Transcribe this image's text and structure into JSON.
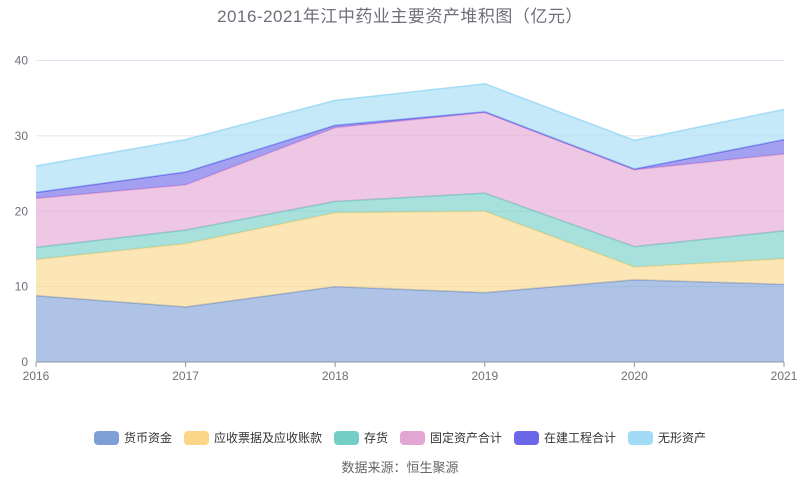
{
  "source_note": "数据来源：恒生聚源",
  "chart_data": {
    "type": "area",
    "stacked": true,
    "title": "2016-2021年江中药业主要资产堆积图（亿元）",
    "categories": [
      "2016",
      "2017",
      "2018",
      "2019",
      "2020",
      "2021"
    ],
    "ylim": [
      0,
      40
    ],
    "y_ticks": [
      0,
      10,
      20,
      30,
      40
    ],
    "grid": true,
    "legend_position": "bottom",
    "series": [
      {
        "name": "货币资金",
        "color": "#7E9ED6",
        "values": [
          8.8,
          7.3,
          10.0,
          9.2,
          10.9,
          10.3
        ]
      },
      {
        "name": "应收票据及应收账款",
        "color": "#FBD687",
        "values": [
          4.8,
          8.4,
          9.8,
          10.8,
          1.7,
          3.4
        ]
      },
      {
        "name": "存货",
        "color": "#73CFC5",
        "values": [
          1.6,
          1.8,
          1.5,
          2.4,
          2.7,
          3.7
        ]
      },
      {
        "name": "固定资产合计",
        "color": "#E3A5D3",
        "values": [
          6.5,
          6.0,
          9.8,
          10.7,
          10.2,
          10.2
        ]
      },
      {
        "name": "在建工程合计",
        "color": "#6C66E8",
        "values": [
          0.8,
          1.7,
          0.3,
          0.1,
          0.1,
          1.9
        ]
      },
      {
        "name": "无形资产",
        "color": "#A1DBF6",
        "values": [
          3.5,
          4.3,
          3.3,
          3.7,
          3.8,
          4.0
        ]
      }
    ],
    "style": {
      "fill_opacity": 0.62,
      "line_width": 1.6,
      "grid_line_color": "#E0E6F1",
      "axis_line_color": "#8E95A5",
      "axis_label_color": "#6E7079",
      "title_color": "#6E7079"
    }
  }
}
